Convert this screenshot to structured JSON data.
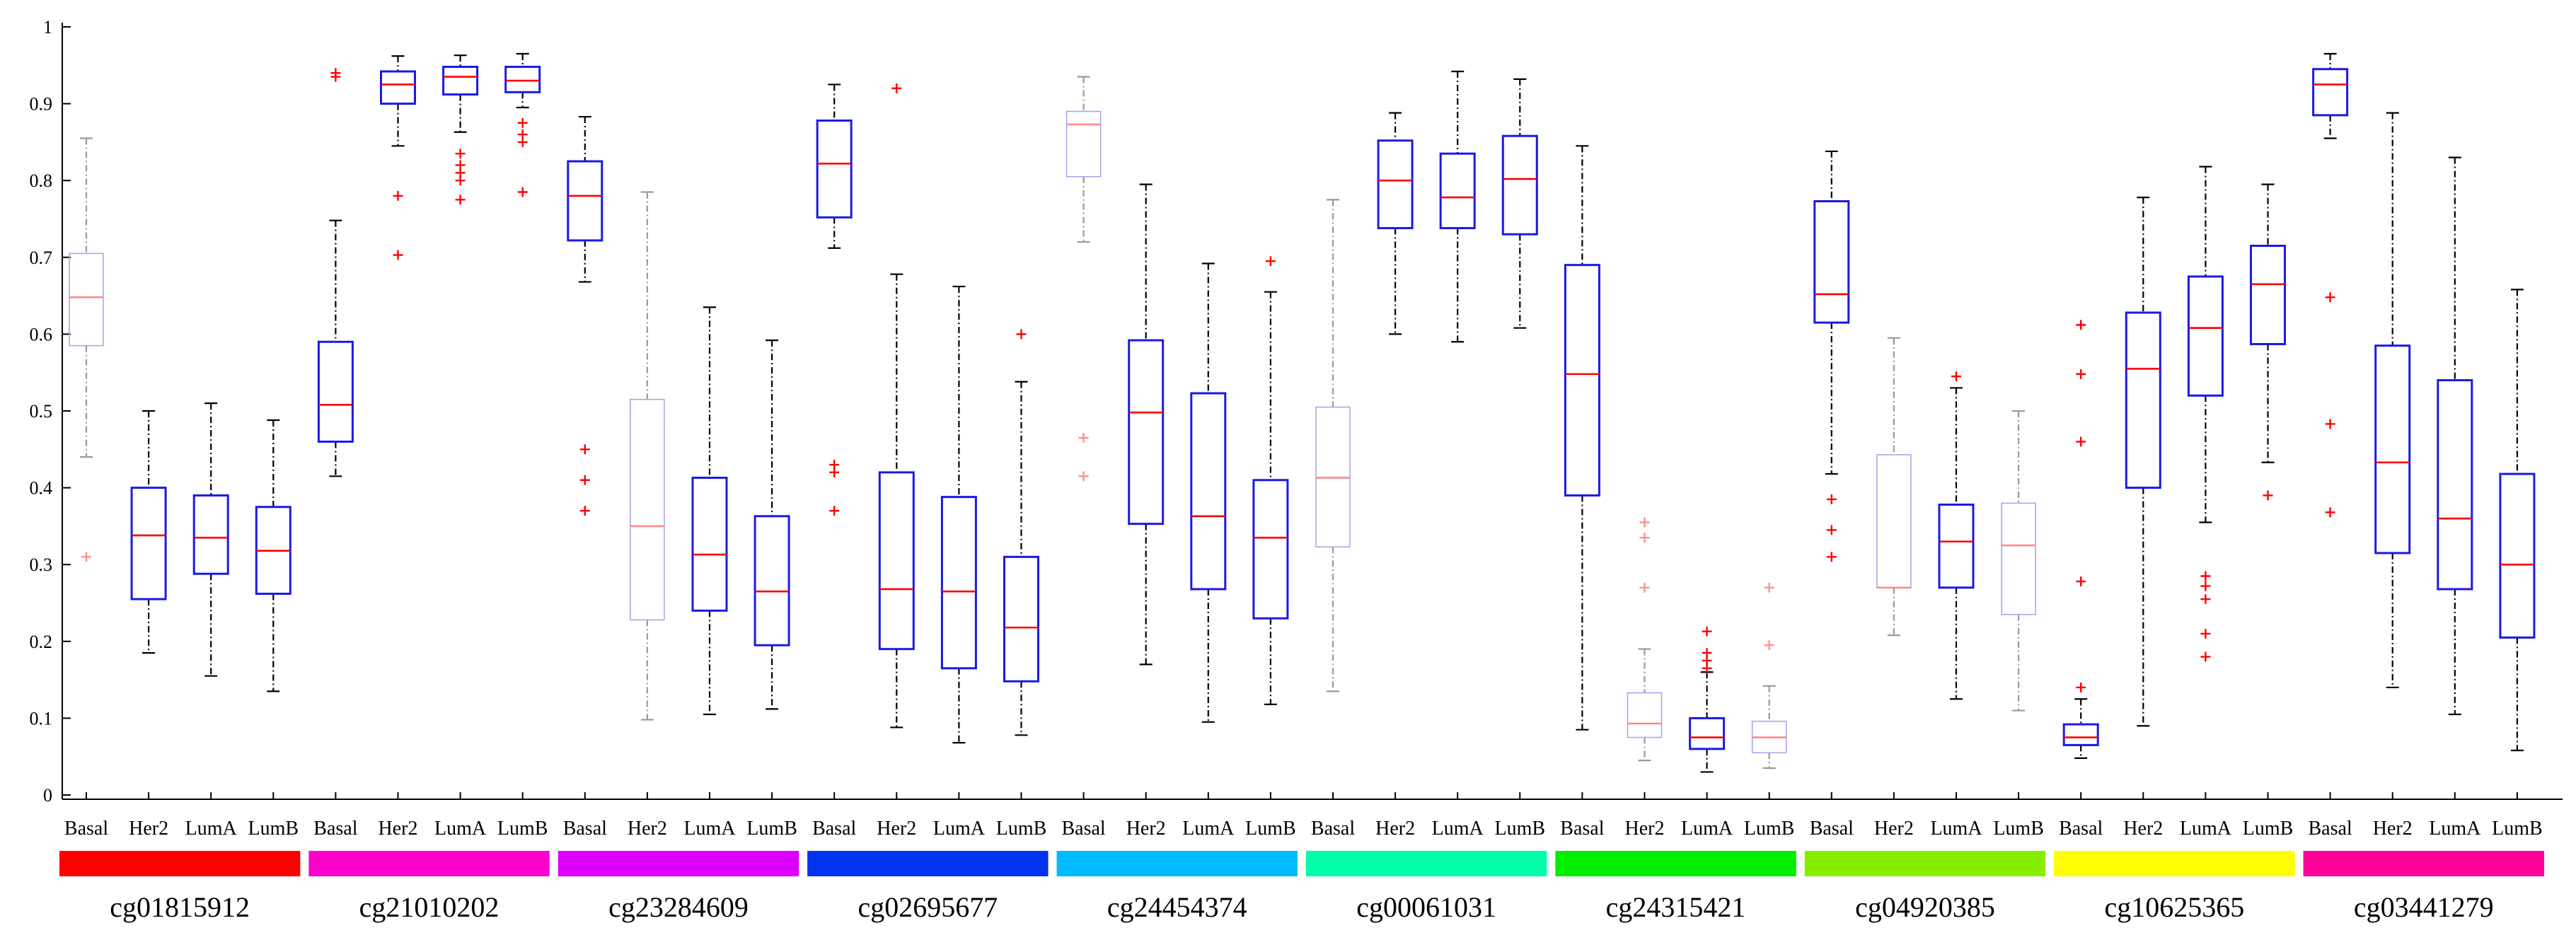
{
  "chart_data": {
    "type": "boxplot",
    "title": "",
    "xlabel": "",
    "ylabel": "",
    "ylim": [
      0,
      1
    ],
    "yticks": [
      0,
      0.1,
      0.2,
      0.3,
      0.4,
      0.5,
      0.6,
      0.7,
      0.8,
      0.9,
      1
    ],
    "ytick_labels": [
      "0",
      "0.1",
      "0.2",
      "0.3",
      "0.4",
      "0.5",
      "0.6",
      "0.7",
      "0.8",
      "0.9",
      "1"
    ],
    "subtypes": [
      "Basal",
      "Her2",
      "LumA",
      "LumB"
    ],
    "groups": [
      {
        "name": "cg01815912",
        "color": "#ff0000",
        "boxes": [
          {
            "subtype": "Basal",
            "whisker_low": 0.44,
            "q1": 0.585,
            "median": 0.648,
            "q3": 0.705,
            "whisker_high": 0.855,
            "outliers": [
              0.31
            ],
            "faded": true
          },
          {
            "subtype": "Her2",
            "whisker_low": 0.185,
            "q1": 0.255,
            "median": 0.338,
            "q3": 0.4,
            "whisker_high": 0.5,
            "outliers": []
          },
          {
            "subtype": "LumA",
            "whisker_low": 0.155,
            "q1": 0.288,
            "median": 0.335,
            "q3": 0.39,
            "whisker_high": 0.51,
            "outliers": []
          },
          {
            "subtype": "LumB",
            "whisker_low": 0.135,
            "q1": 0.262,
            "median": 0.318,
            "q3": 0.375,
            "whisker_high": 0.488,
            "outliers": []
          }
        ]
      },
      {
        "name": "cg21010202",
        "color": "#ff00cc",
        "boxes": [
          {
            "subtype": "Basal",
            "whisker_low": 0.415,
            "q1": 0.46,
            "median": 0.508,
            "q3": 0.59,
            "whisker_high": 0.748,
            "outliers": [
              0.935,
              0.94
            ]
          },
          {
            "subtype": "Her2",
            "whisker_low": 0.845,
            "q1": 0.9,
            "median": 0.925,
            "q3": 0.942,
            "whisker_high": 0.962,
            "outliers": [
              0.78,
              0.703
            ]
          },
          {
            "subtype": "LumA",
            "whisker_low": 0.863,
            "q1": 0.912,
            "median": 0.935,
            "q3": 0.948,
            "whisker_high": 0.963,
            "outliers": [
              0.835,
              0.82,
              0.81,
              0.8,
              0.775
            ]
          },
          {
            "subtype": "LumB",
            "whisker_low": 0.895,
            "q1": 0.915,
            "median": 0.93,
            "q3": 0.948,
            "whisker_high": 0.965,
            "outliers": [
              0.875,
              0.86,
              0.85,
              0.785
            ]
          }
        ]
      },
      {
        "name": "cg23284609",
        "color": "#dd00ff",
        "boxes": [
          {
            "subtype": "Basal",
            "whisker_low": 0.668,
            "q1": 0.722,
            "median": 0.78,
            "q3": 0.825,
            "whisker_high": 0.883,
            "outliers": [
              0.45,
              0.41,
              0.37
            ]
          },
          {
            "subtype": "Her2",
            "whisker_low": 0.098,
            "q1": 0.228,
            "median": 0.35,
            "q3": 0.515,
            "whisker_high": 0.785,
            "outliers": [],
            "faded": true
          },
          {
            "subtype": "LumA",
            "whisker_low": 0.105,
            "q1": 0.24,
            "median": 0.313,
            "q3": 0.413,
            "whisker_high": 0.635,
            "outliers": []
          },
          {
            "subtype": "LumB",
            "whisker_low": 0.112,
            "q1": 0.195,
            "median": 0.265,
            "q3": 0.363,
            "whisker_high": 0.592,
            "outliers": []
          }
        ]
      },
      {
        "name": "cg02695677",
        "color": "#0033ee",
        "boxes": [
          {
            "subtype": "Basal",
            "whisker_low": 0.712,
            "q1": 0.752,
            "median": 0.822,
            "q3": 0.878,
            "whisker_high": 0.925,
            "outliers": [
              0.43,
              0.42,
              0.37
            ]
          },
          {
            "subtype": "Her2",
            "whisker_low": 0.088,
            "q1": 0.19,
            "median": 0.268,
            "q3": 0.42,
            "whisker_high": 0.678,
            "outliers": [
              0.92
            ]
          },
          {
            "subtype": "LumA",
            "whisker_low": 0.068,
            "q1": 0.165,
            "median": 0.265,
            "q3": 0.388,
            "whisker_high": 0.662,
            "outliers": []
          },
          {
            "subtype": "LumB",
            "whisker_low": 0.078,
            "q1": 0.148,
            "median": 0.218,
            "q3": 0.31,
            "whisker_high": 0.538,
            "outliers": [
              0.6
            ]
          }
        ]
      },
      {
        "name": "cg24454374",
        "color": "#00bbff",
        "boxes": [
          {
            "subtype": "Basal",
            "whisker_low": 0.72,
            "q1": 0.805,
            "median": 0.873,
            "q3": 0.89,
            "whisker_high": 0.935,
            "outliers": [
              0.465,
              0.415
            ],
            "faded": true
          },
          {
            "subtype": "Her2",
            "whisker_low": 0.17,
            "q1": 0.353,
            "median": 0.498,
            "q3": 0.592,
            "whisker_high": 0.795,
            "outliers": []
          },
          {
            "subtype": "LumA",
            "whisker_low": 0.095,
            "q1": 0.268,
            "median": 0.363,
            "q3": 0.523,
            "whisker_high": 0.692,
            "outliers": []
          },
          {
            "subtype": "LumB",
            "whisker_low": 0.118,
            "q1": 0.23,
            "median": 0.335,
            "q3": 0.41,
            "whisker_high": 0.655,
            "outliers": [
              0.695
            ]
          }
        ]
      },
      {
        "name": "cg00061031",
        "color": "#00ffaa",
        "boxes": [
          {
            "subtype": "Basal",
            "whisker_low": 0.135,
            "q1": 0.323,
            "median": 0.413,
            "q3": 0.505,
            "whisker_high": 0.775,
            "outliers": [],
            "faded": true
          },
          {
            "subtype": "Her2",
            "whisker_low": 0.6,
            "q1": 0.738,
            "median": 0.8,
            "q3": 0.852,
            "whisker_high": 0.888,
            "outliers": []
          },
          {
            "subtype": "LumA",
            "whisker_low": 0.59,
            "q1": 0.738,
            "median": 0.778,
            "q3": 0.835,
            "whisker_high": 0.942,
            "outliers": []
          },
          {
            "subtype": "LumB",
            "whisker_low": 0.608,
            "q1": 0.73,
            "median": 0.802,
            "q3": 0.858,
            "whisker_high": 0.932,
            "outliers": []
          }
        ]
      },
      {
        "name": "cg24315421",
        "color": "#00ee00",
        "boxes": [
          {
            "subtype": "Basal",
            "whisker_low": 0.085,
            "q1": 0.39,
            "median": 0.548,
            "q3": 0.69,
            "whisker_high": 0.845,
            "outliers": []
          },
          {
            "subtype": "Her2",
            "whisker_low": 0.045,
            "q1": 0.075,
            "median": 0.093,
            "q3": 0.133,
            "whisker_high": 0.19,
            "outliers": [
              0.355,
              0.335,
              0.27
            ],
            "faded": true
          },
          {
            "subtype": "LumA",
            "whisker_low": 0.03,
            "q1": 0.06,
            "median": 0.075,
            "q3": 0.1,
            "whisker_high": 0.16,
            "outliers": [
              0.213,
              0.185,
              0.175,
              0.165
            ]
          },
          {
            "subtype": "LumB",
            "whisker_low": 0.035,
            "q1": 0.055,
            "median": 0.075,
            "q3": 0.096,
            "whisker_high": 0.142,
            "outliers": [
              0.27,
              0.195
            ],
            "faded": true
          }
        ]
      },
      {
        "name": "cg04920385",
        "color": "#88ee00",
        "boxes": [
          {
            "subtype": "Basal",
            "whisker_low": 0.418,
            "q1": 0.615,
            "median": 0.652,
            "q3": 0.773,
            "whisker_high": 0.838,
            "outliers": [
              0.385,
              0.345,
              0.31
            ]
          },
          {
            "subtype": "Her2",
            "whisker_low": 0.208,
            "q1": 0.27,
            "median": 0.27,
            "q3": 0.443,
            "whisker_high": 0.595,
            "outliers": [],
            "faded": true
          },
          {
            "subtype": "LumA",
            "whisker_low": 0.125,
            "q1": 0.27,
            "median": 0.33,
            "q3": 0.378,
            "whisker_high": 0.53,
            "outliers": [
              0.545
            ]
          },
          {
            "subtype": "LumB",
            "whisker_low": 0.11,
            "q1": 0.235,
            "median": 0.325,
            "q3": 0.38,
            "whisker_high": 0.5,
            "outliers": [],
            "faded": true
          }
        ]
      },
      {
        "name": "cg10625365",
        "color": "#ffff00",
        "boxes": [
          {
            "subtype": "Basal",
            "whisker_low": 0.048,
            "q1": 0.065,
            "median": 0.075,
            "q3": 0.092,
            "whisker_high": 0.125,
            "outliers": [
              0.612,
              0.548,
              0.46,
              0.278,
              0.14
            ]
          },
          {
            "subtype": "Her2",
            "whisker_low": 0.09,
            "q1": 0.4,
            "median": 0.555,
            "q3": 0.628,
            "whisker_high": 0.778,
            "outliers": []
          },
          {
            "subtype": "LumA",
            "whisker_low": 0.355,
            "q1": 0.52,
            "median": 0.608,
            "q3": 0.675,
            "whisker_high": 0.818,
            "outliers": [
              0.285,
              0.272,
              0.255,
              0.21,
              0.18
            ]
          },
          {
            "subtype": "LumB",
            "whisker_low": 0.433,
            "q1": 0.587,
            "median": 0.665,
            "q3": 0.715,
            "whisker_high": 0.795,
            "outliers": [
              0.39
            ]
          }
        ]
      },
      {
        "name": "cg03441279",
        "color": "#ff0099",
        "boxes": [
          {
            "subtype": "Basal",
            "whisker_low": 0.855,
            "q1": 0.885,
            "median": 0.925,
            "q3": 0.945,
            "whisker_high": 0.965,
            "outliers": [
              0.648,
              0.483,
              0.368
            ]
          },
          {
            "subtype": "Her2",
            "whisker_low": 0.14,
            "q1": 0.315,
            "median": 0.433,
            "q3": 0.585,
            "whisker_high": 0.888,
            "outliers": []
          },
          {
            "subtype": "LumA",
            "whisker_low": 0.105,
            "q1": 0.268,
            "median": 0.36,
            "q3": 0.54,
            "whisker_high": 0.83,
            "outliers": []
          },
          {
            "subtype": "LumB",
            "whisker_low": 0.058,
            "q1": 0.205,
            "median": 0.3,
            "q3": 0.418,
            "whisker_high": 0.658,
            "outliers": []
          }
        ]
      }
    ]
  }
}
